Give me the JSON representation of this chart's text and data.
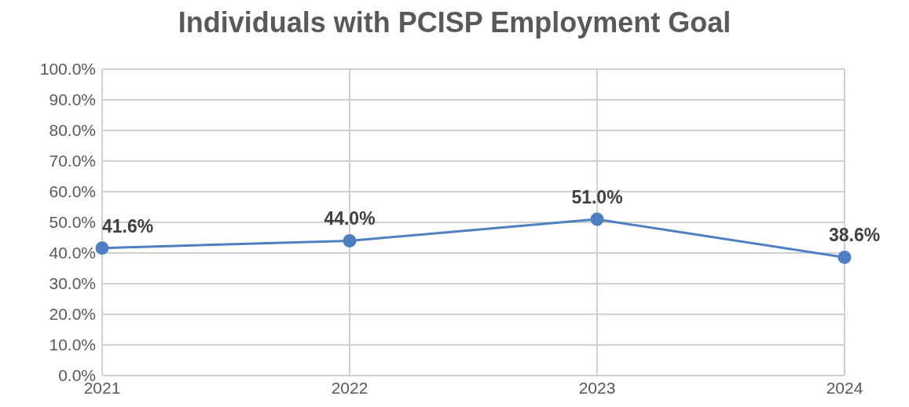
{
  "chart_data": {
    "type": "line",
    "title": "Individuals with PCISP Employment Goal",
    "categories": [
      "2021",
      "2022",
      "2023",
      "2024"
    ],
    "series": [
      {
        "color": "#4f7fc0",
        "values": [
          41.6,
          44.0,
          51.0,
          38.6
        ],
        "value_labels": [
          "41.6%",
          "44.0%",
          "51.0%",
          "38.6%"
        ]
      }
    ],
    "ylim": [
      0,
      100
    ],
    "yticks": [
      {
        "value": 0,
        "label": "0.0%"
      },
      {
        "value": 10,
        "label": "10.0%"
      },
      {
        "value": 20,
        "label": "20.0%"
      },
      {
        "value": 30,
        "label": "30.0%"
      },
      {
        "value": 40,
        "label": "40.0%"
      },
      {
        "value": 50,
        "label": "50.0%"
      },
      {
        "value": 60,
        "label": "60.0%"
      },
      {
        "value": 70,
        "label": "70.0%"
      },
      {
        "value": 80,
        "label": "80.0%"
      },
      {
        "value": 90,
        "label": "90.0%"
      },
      {
        "value": 100,
        "label": "100.0%"
      }
    ],
    "grid": true,
    "marker": "circle",
    "line_style": "solid",
    "legend": false
  }
}
